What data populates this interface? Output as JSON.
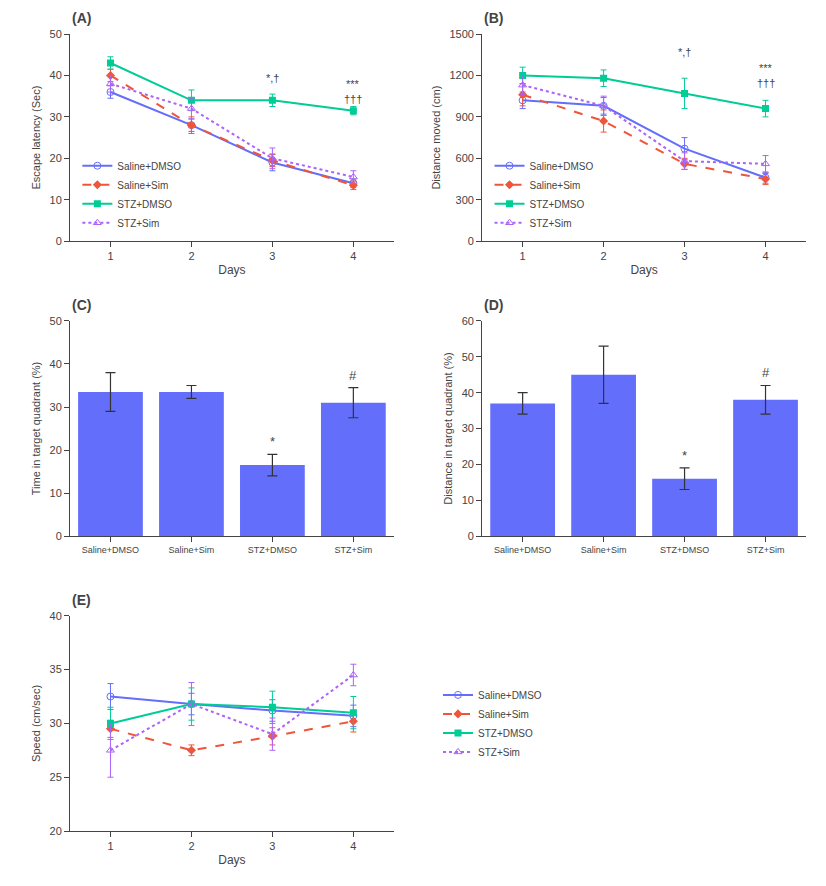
{
  "chart_data": [
    {
      "type": "line",
      "title": "(A)",
      "xlabel": "Days",
      "ylabel": "Escape latency (Sec)",
      "xlim": [
        0.5,
        4.5
      ],
      "xticks": [
        1,
        2,
        3,
        4
      ],
      "ylim": [
        0,
        50
      ],
      "yticks": [
        0,
        10,
        20,
        30,
        40,
        50
      ],
      "x": [
        1,
        2,
        3,
        4
      ],
      "series": [
        {
          "name": "Saline+DMSO",
          "values": [
            36,
            28,
            19,
            14
          ],
          "errors": [
            1.5,
            1.5,
            2.0,
            1.0
          ],
          "marker": "circle-open",
          "line_style": "solid"
        },
        {
          "name": "Saline+Sim",
          "values": [
            40,
            28,
            19.5,
            13.5
          ],
          "errors": [
            1.5,
            2.0,
            1.5,
            1.0
          ],
          "marker": "diamond",
          "line_style": "dashed"
        },
        {
          "name": "STZ+DMSO",
          "values": [
            43,
            34,
            34,
            31.5
          ],
          "errors": [
            1.5,
            2.5,
            1.5,
            1.0
          ],
          "marker": "square",
          "line_style": "solid"
        },
        {
          "name": "STZ+Sim",
          "values": [
            38,
            32,
            20,
            15.5
          ],
          "errors": [
            2.0,
            2.5,
            2.5,
            1.5
          ],
          "marker": "triangle-up-open",
          "line_style": "dotted"
        }
      ],
      "annotations": [
        {
          "text": "*,†",
          "x": 3,
          "y": 37.5
        },
        {
          "text": "***",
          "x": 4,
          "y": 34.5
        },
        {
          "text": "†††",
          "x": 4,
          "y": 32.5
        }
      ],
      "legend": "lower left",
      "grid": false
    },
    {
      "type": "line",
      "title": "(B)",
      "xlabel": "Days",
      "ylabel": "Distance moved (cm)",
      "xlim": [
        0.5,
        4.5
      ],
      "xticks": [
        1,
        2,
        3,
        4
      ],
      "ylim": [
        0,
        1500
      ],
      "yticks": [
        0,
        300,
        600,
        900,
        1200,
        1500
      ],
      "x": [
        1,
        2,
        3,
        4
      ],
      "series": [
        {
          "name": "Saline+DMSO",
          "values": [
            1020,
            980,
            670,
            460
          ],
          "errors": [
            60,
            60,
            80,
            40
          ],
          "marker": "circle-open",
          "line_style": "solid"
        },
        {
          "name": "Saline+Sim",
          "values": [
            1060,
            870,
            560,
            450
          ],
          "errors": [
            80,
            80,
            40,
            40
          ],
          "marker": "diamond",
          "line_style": "dashed"
        },
        {
          "name": "STZ+DMSO",
          "values": [
            1200,
            1180,
            1070,
            960
          ],
          "errors": [
            60,
            60,
            110,
            60
          ],
          "marker": "square",
          "line_style": "solid"
        },
        {
          "name": "STZ+Sim",
          "values": [
            1130,
            980,
            580,
            560
          ],
          "errors": [
            70,
            70,
            60,
            60
          ],
          "marker": "triangle-up-open",
          "line_style": "dotted"
        }
      ],
      "annotations": [
        {
          "text": "*,†",
          "x": 3,
          "y": 1310
        },
        {
          "text": "***",
          "x": 4,
          "y": 1170
        },
        {
          "text": "†††",
          "x": 4,
          "y": 1090
        }
      ],
      "legend": "lower left",
      "grid": false
    },
    {
      "type": "bar",
      "title": "(C)",
      "ylabel": "Time in target quadrant (%)",
      "ylim": [
        0,
        50
      ],
      "yticks": [
        0,
        10,
        20,
        30,
        40,
        50
      ],
      "categories": [
        "Saline+DMSO",
        "Saline+Sim",
        "STZ+DMSO",
        "STZ+Sim"
      ],
      "values": [
        33.5,
        33.5,
        16.5,
        31.0
      ],
      "errors": [
        4.5,
        1.5,
        2.5,
        3.5
      ],
      "annotations": [
        {
          "text": "*",
          "x": "STZ+DMSO"
        },
        {
          "text": "#",
          "x": "STZ+Sim"
        }
      ],
      "grid": false
    },
    {
      "type": "bar",
      "title": "(D)",
      "ylabel": "Distance in target quadrant (%)",
      "ylim": [
        0,
        60
      ],
      "yticks": [
        0,
        10,
        20,
        30,
        40,
        50,
        60
      ],
      "categories": [
        "Saline+DMSO",
        "Saline+Sim",
        "STZ+DMSO",
        "STZ+Sim"
      ],
      "values": [
        37,
        45,
        16,
        38
      ],
      "errors": [
        3.0,
        8.0,
        3.0,
        4.0
      ],
      "annotations": [
        {
          "text": "*",
          "x": "STZ+DMSO"
        },
        {
          "text": "#",
          "x": "STZ+Sim"
        }
      ],
      "grid": false
    },
    {
      "type": "line",
      "title": "(E)",
      "xlabel": "Days",
      "ylabel": "Speed (cm/sec)",
      "xlim": [
        0.5,
        4.5
      ],
      "xticks": [
        1,
        2,
        3,
        4
      ],
      "ylim": [
        20,
        40
      ],
      "yticks": [
        20,
        25,
        30,
        35,
        40
      ],
      "x": [
        1,
        2,
        3,
        4
      ],
      "series": [
        {
          "name": "Saline+DMSO",
          "values": [
            32.5,
            31.8,
            31.2,
            30.7
          ],
          "errors": [
            1.2,
            1.0,
            1.0,
            1.0
          ],
          "marker": "circle-open",
          "line_style": "solid"
        },
        {
          "name": "Saline+Sim",
          "values": [
            29.5,
            27.5,
            28.8,
            30.2
          ],
          "errors": [
            0.8,
            0.5,
            0.8,
            1.0
          ],
          "marker": "diamond",
          "line_style": "dashed"
        },
        {
          "name": "STZ+DMSO",
          "values": [
            30.0,
            31.8,
            31.5,
            31.0
          ],
          "errors": [
            1.5,
            1.5,
            1.5,
            1.5
          ],
          "marker": "square",
          "line_style": "solid"
        },
        {
          "name": "STZ+Sim",
          "values": [
            27.5,
            31.8,
            29.0,
            34.5
          ],
          "errors": [
            2.5,
            2.0,
            1.5,
            1.0
          ],
          "marker": "triangle-up-open",
          "line_style": "dotted"
        }
      ],
      "legend": "right",
      "grid": false
    }
  ]
}
